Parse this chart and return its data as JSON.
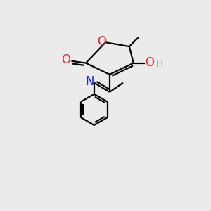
{
  "bg_color": "#ebebeb",
  "atom_colors": {
    "C": "#000000",
    "O": "#e8202a",
    "N": "#2020e0",
    "H_teal": "#5a9a8a"
  },
  "bond_color": "#000000",
  "bond_width": 1.6,
  "font_size_atoms": 12,
  "font_size_H": 10,
  "figsize": [
    3.0,
    3.0
  ],
  "dpi": 100
}
